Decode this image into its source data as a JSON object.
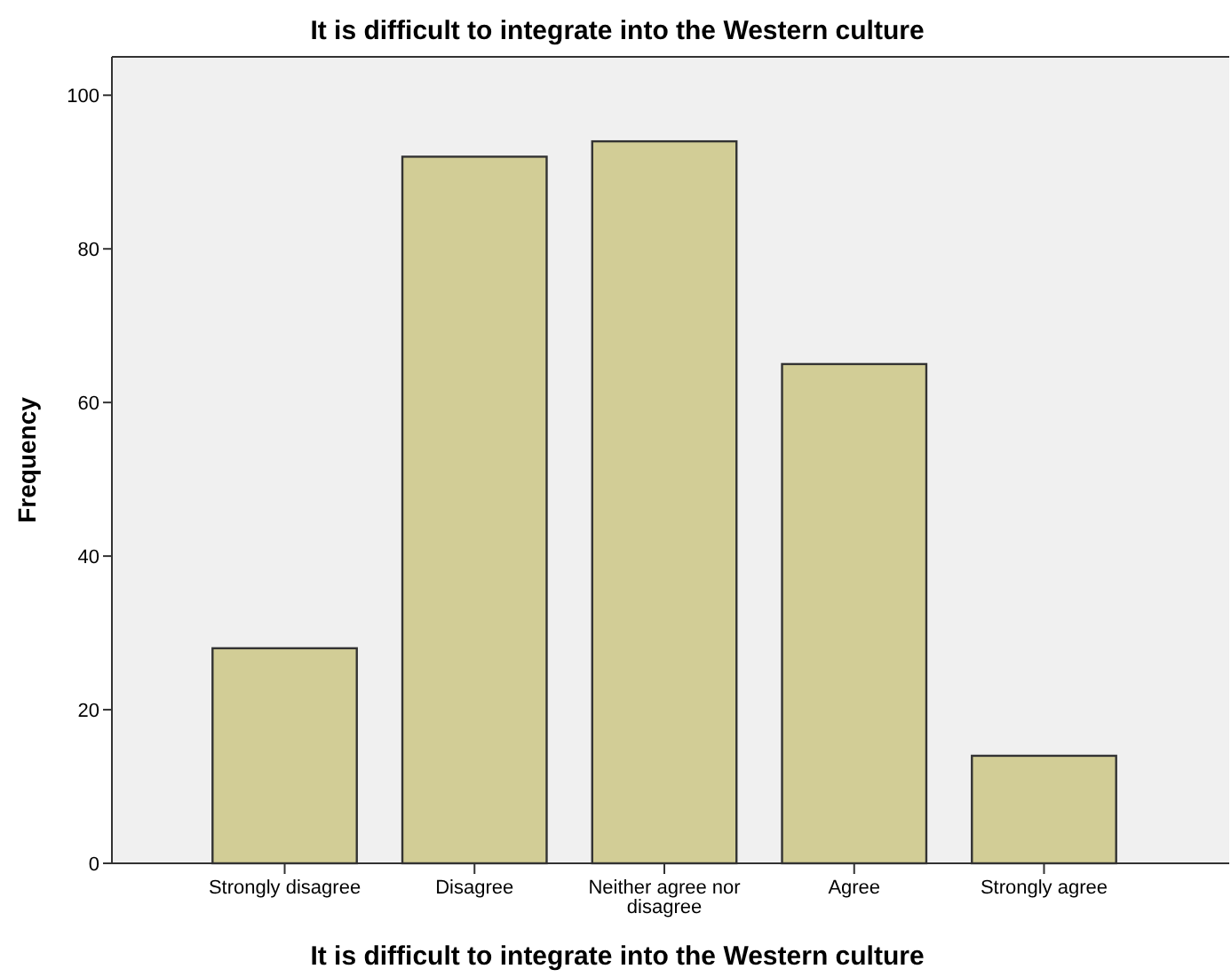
{
  "chart_data": {
    "type": "bar",
    "title": "It is difficult to integrate into the Western culture",
    "xlabel": "It is difficult to integrate into the Western culture",
    "ylabel": "Frequency",
    "categories": [
      "Strongly disagree",
      "Disagree",
      "Neither agree nor disagree",
      "Agree",
      "Strongly agree"
    ],
    "values": [
      28,
      92,
      94,
      65,
      14
    ],
    "color": "#d2cd96",
    "ylim": [
      0,
      105
    ],
    "yticks": [
      0,
      20,
      40,
      60,
      80,
      100
    ],
    "grid": false
  }
}
